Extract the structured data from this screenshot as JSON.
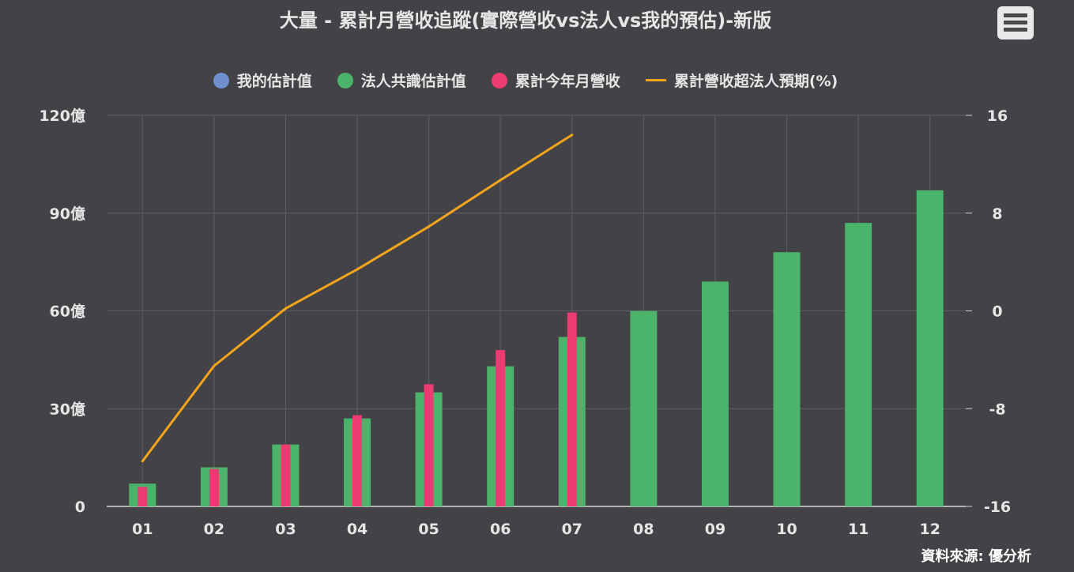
{
  "title": "大量 - 累計月營收追蹤(實際營收vs法人vs我的預估)-新版",
  "menu_icon": "hamburger-menu-icon",
  "source": "資料來源: 優分析",
  "colors": {
    "background": "#434347",
    "my_estimate": "#6f8fce",
    "consensus": "#4cb36a",
    "revenue": "#ec3a73",
    "excess_line": "#f5a51b",
    "grid": "#5e5e63"
  },
  "legend": [
    {
      "label": "我的估計值",
      "type": "dot",
      "color": "#6f8fce"
    },
    {
      "label": "法人共識估計值",
      "type": "dot",
      "color": "#4cb36a"
    },
    {
      "label": "累計今年月營收",
      "type": "dot",
      "color": "#ec3a73"
    },
    {
      "label": "累計營收超法人預期(%)",
      "type": "line",
      "color": "#f5a51b"
    }
  ],
  "chart_data": {
    "type": "bar",
    "title": "大量 - 累計月營收追蹤(實際營收vs法人vs我的預估)-新版",
    "categories": [
      "01",
      "02",
      "03",
      "04",
      "05",
      "06",
      "07",
      "08",
      "09",
      "10",
      "11",
      "12"
    ],
    "y_left": {
      "ylim": [
        0,
        120
      ],
      "ticks": [
        0,
        30,
        60,
        90,
        120
      ],
      "tick_labels": [
        "0",
        "30億",
        "60億",
        "90億",
        "120億"
      ]
    },
    "y_right": {
      "ylim": [
        -16,
        16
      ],
      "ticks": [
        -16,
        -8,
        0,
        8,
        16
      ],
      "tick_labels": [
        "-16",
        "-8",
        "0",
        "8",
        "16"
      ]
    },
    "grid": true,
    "legend_position": "top",
    "series": [
      {
        "name": "我的估計值",
        "type": "bar",
        "axis": "left",
        "values": [
          null,
          null,
          null,
          null,
          null,
          null,
          null,
          null,
          null,
          null,
          null,
          null
        ]
      },
      {
        "name": "法人共識估計值",
        "type": "bar",
        "axis": "left",
        "values": [
          7,
          12,
          19,
          27,
          35,
          43,
          52,
          60,
          69,
          78,
          87,
          97
        ]
      },
      {
        "name": "累計今年月營收",
        "type": "bar",
        "axis": "left",
        "values": [
          6,
          11.5,
          19,
          28,
          37.5,
          48,
          59.5,
          null,
          null,
          null,
          null,
          null
        ]
      },
      {
        "name": "累計營收超法人預期(%)",
        "type": "line",
        "axis": "right",
        "values": [
          -12.3,
          -4.5,
          0.2,
          3.4,
          6.9,
          10.7,
          14.4,
          null,
          null,
          null,
          null,
          null
        ]
      }
    ]
  }
}
